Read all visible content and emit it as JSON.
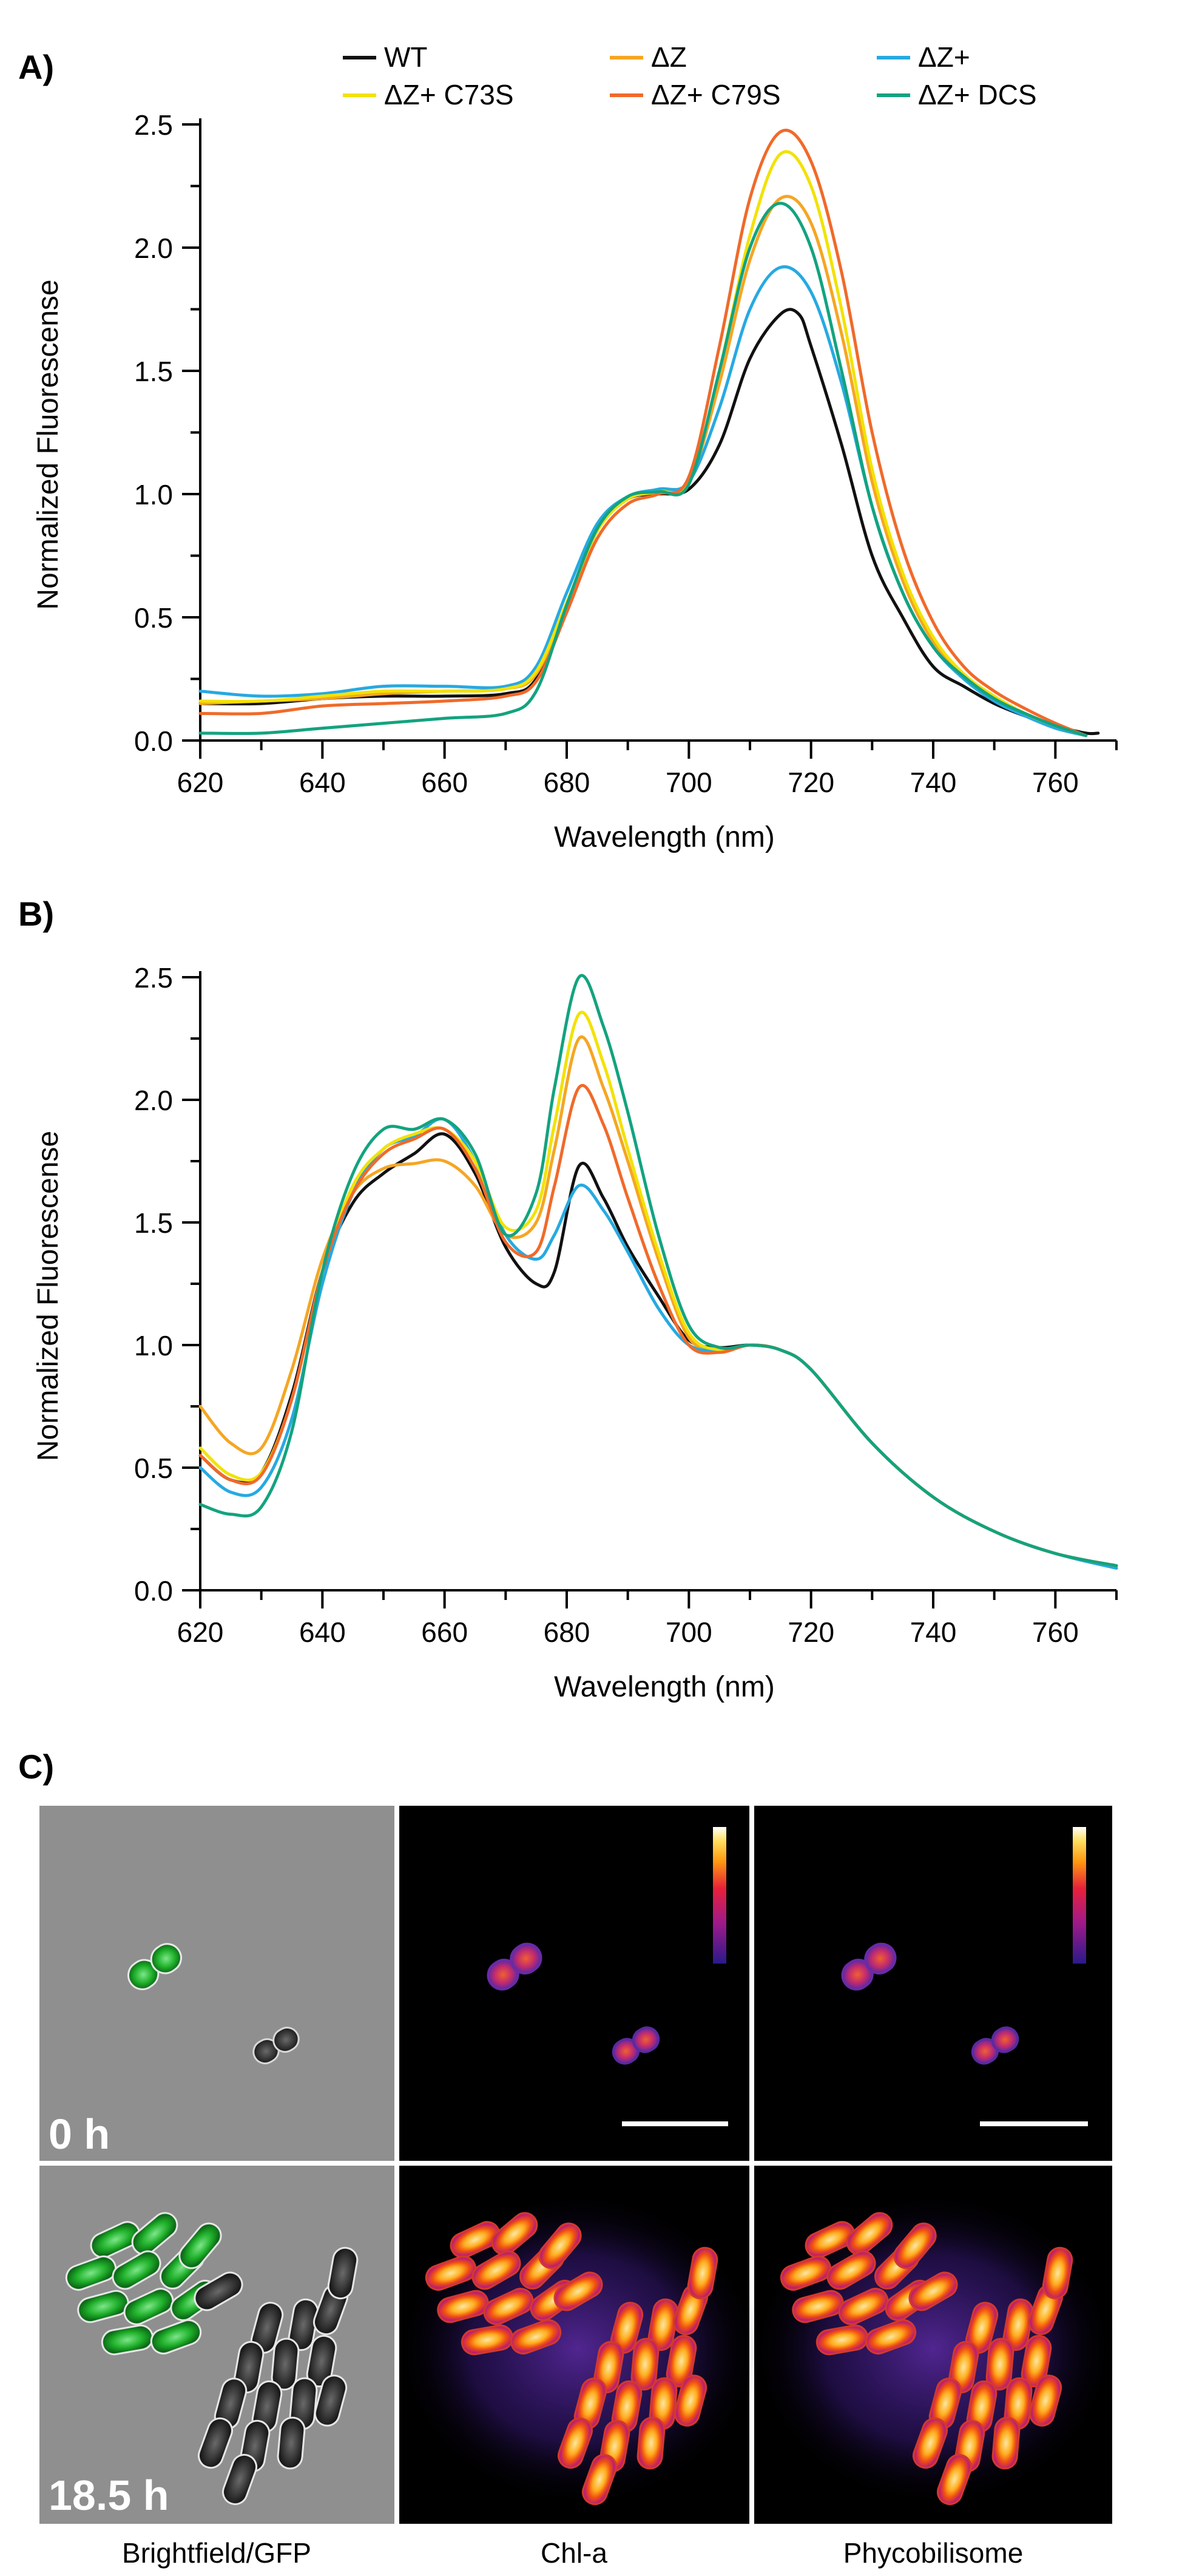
{
  "colors": {
    "WT": "#111111",
    "dZ": "#f5a623",
    "dZplus": "#27a9e1",
    "C73S": "#f2e205",
    "C79S": "#f06a2a",
    "DCS": "#13a37f"
  },
  "chart_data": [
    {
      "panel": "A)",
      "type": "line",
      "xlabel": "Wavelength (nm)",
      "ylabel": "Normalized Fluorescense",
      "xlim": [
        620,
        770
      ],
      "ylim": [
        0,
        2.5
      ],
      "xticks": [
        620,
        640,
        660,
        680,
        700,
        720,
        740,
        760
      ],
      "yticks": [
        0.0,
        0.5,
        1.0,
        1.5,
        2.0,
        2.5
      ],
      "legend": {
        "placement": "top",
        "entries": [
          "WT",
          "ΔZ",
          "ΔZ+",
          "ΔZ+ C73S",
          "ΔZ+ C79S",
          "ΔZ+ DCS"
        ]
      },
      "series": [
        {
          "name": "WT",
          "color_key": "WT",
          "x": [
            620,
            630,
            640,
            650,
            660,
            670,
            675,
            680,
            685,
            690,
            695,
            700,
            705,
            710,
            715,
            718,
            720,
            725,
            730,
            735,
            740,
            745,
            750,
            755,
            760,
            765,
            767
          ],
          "y": [
            0.15,
            0.15,
            0.17,
            0.18,
            0.18,
            0.19,
            0.25,
            0.55,
            0.85,
            0.98,
            1.0,
            1.02,
            1.2,
            1.55,
            1.73,
            1.73,
            1.6,
            1.2,
            0.75,
            0.5,
            0.3,
            0.22,
            0.15,
            0.1,
            0.06,
            0.03,
            0.03
          ]
        },
        {
          "name": "ΔZ",
          "color_key": "dZ",
          "x": [
            620,
            630,
            640,
            650,
            660,
            670,
            675,
            680,
            685,
            690,
            695,
            700,
            705,
            710,
            715,
            720,
            725,
            730,
            735,
            740,
            745,
            750,
            755,
            760,
            765
          ],
          "y": [
            0.15,
            0.16,
            0.17,
            0.19,
            0.2,
            0.21,
            0.27,
            0.55,
            0.85,
            0.98,
            1.01,
            1.05,
            1.45,
            1.95,
            2.2,
            2.1,
            1.65,
            1.05,
            0.65,
            0.4,
            0.26,
            0.17,
            0.11,
            0.06,
            0.02
          ]
        },
        {
          "name": "ΔZ+",
          "color_key": "dZplus",
          "x": [
            620,
            630,
            640,
            650,
            660,
            670,
            675,
            680,
            685,
            690,
            695,
            700,
            705,
            710,
            715,
            720,
            725,
            730,
            735,
            740,
            745,
            750,
            755,
            760,
            765
          ],
          "y": [
            0.2,
            0.18,
            0.19,
            0.22,
            0.22,
            0.22,
            0.3,
            0.6,
            0.88,
            0.99,
            1.02,
            1.05,
            1.35,
            1.75,
            1.92,
            1.82,
            1.45,
            0.95,
            0.6,
            0.38,
            0.25,
            0.16,
            0.1,
            0.05,
            0.02
          ]
        },
        {
          "name": "ΔZ+ C73S",
          "color_key": "C73S",
          "x": [
            620,
            630,
            640,
            650,
            660,
            670,
            675,
            680,
            685,
            690,
            695,
            700,
            705,
            710,
            715,
            720,
            725,
            730,
            735,
            740,
            745,
            750,
            755,
            760,
            765
          ],
          "y": [
            0.16,
            0.16,
            0.18,
            0.2,
            0.2,
            0.21,
            0.28,
            0.56,
            0.85,
            0.98,
            1.01,
            1.05,
            1.5,
            2.05,
            2.38,
            2.25,
            1.75,
            1.1,
            0.68,
            0.42,
            0.27,
            0.18,
            0.11,
            0.06,
            0.02
          ]
        },
        {
          "name": "ΔZ+ C79S",
          "color_key": "C79S",
          "x": [
            620,
            630,
            640,
            650,
            660,
            670,
            675,
            680,
            685,
            690,
            695,
            700,
            705,
            710,
            715,
            720,
            725,
            730,
            735,
            740,
            745,
            750,
            755,
            760,
            765
          ],
          "y": [
            0.11,
            0.11,
            0.14,
            0.15,
            0.16,
            0.18,
            0.24,
            0.52,
            0.82,
            0.96,
            1.0,
            1.07,
            1.6,
            2.2,
            2.47,
            2.35,
            1.9,
            1.25,
            0.78,
            0.48,
            0.3,
            0.2,
            0.13,
            0.07,
            0.02
          ]
        },
        {
          "name": "ΔZ+ DCS",
          "color_key": "DCS",
          "x": [
            620,
            630,
            640,
            650,
            660,
            670,
            675,
            680,
            685,
            690,
            695,
            700,
            705,
            710,
            715,
            720,
            725,
            730,
            735,
            740,
            745,
            750,
            755,
            760,
            765
          ],
          "y": [
            0.03,
            0.03,
            0.05,
            0.07,
            0.09,
            0.11,
            0.2,
            0.55,
            0.86,
            0.99,
            1.01,
            1.04,
            1.5,
            2.0,
            2.18,
            2.0,
            1.5,
            0.95,
            0.6,
            0.38,
            0.26,
            0.17,
            0.11,
            0.06,
            0.02
          ]
        }
      ]
    },
    {
      "panel": "B)",
      "type": "line",
      "xlabel": "Wavelength (nm)",
      "ylabel": "Normalized Fluorescense",
      "xlim": [
        620,
        770
      ],
      "ylim": [
        0,
        2.5
      ],
      "xticks": [
        620,
        640,
        660,
        680,
        700,
        720,
        740,
        760
      ],
      "yticks": [
        0.0,
        0.5,
        1.0,
        1.5,
        2.0,
        2.5
      ],
      "series": [
        {
          "name": "WT",
          "color_key": "WT",
          "x": [
            620,
            625,
            630,
            635,
            640,
            645,
            650,
            655,
            660,
            665,
            670,
            675,
            678,
            682,
            686,
            690,
            695,
            700,
            705,
            710,
            715,
            720,
            730,
            740,
            750,
            760,
            770
          ],
          "y": [
            0.55,
            0.45,
            0.48,
            0.8,
            1.3,
            1.58,
            1.7,
            1.78,
            1.86,
            1.7,
            1.4,
            1.25,
            1.3,
            1.73,
            1.6,
            1.4,
            1.2,
            1.02,
            0.99,
            1.0,
            0.98,
            0.9,
            0.6,
            0.38,
            0.24,
            0.15,
            0.1
          ]
        },
        {
          "name": "ΔZ",
          "color_key": "dZ",
          "x": [
            620,
            625,
            630,
            635,
            640,
            645,
            650,
            655,
            660,
            665,
            670,
            675,
            678,
            682,
            686,
            690,
            695,
            700,
            705,
            710,
            715,
            720,
            730,
            740,
            750,
            760,
            770
          ],
          "y": [
            0.75,
            0.6,
            0.58,
            0.9,
            1.35,
            1.62,
            1.72,
            1.74,
            1.75,
            1.65,
            1.45,
            1.5,
            1.8,
            2.25,
            2.05,
            1.75,
            1.35,
            1.03,
            0.98,
            1.0,
            0.98,
            0.9,
            0.6,
            0.38,
            0.24,
            0.15,
            0.1
          ]
        },
        {
          "name": "ΔZ+",
          "color_key": "dZplus",
          "x": [
            620,
            625,
            630,
            635,
            640,
            645,
            650,
            655,
            660,
            665,
            670,
            675,
            678,
            682,
            686,
            690,
            695,
            700,
            705,
            710,
            715,
            720,
            730,
            740,
            750,
            760,
            770
          ],
          "y": [
            0.5,
            0.4,
            0.42,
            0.7,
            1.25,
            1.62,
            1.8,
            1.85,
            1.92,
            1.75,
            1.45,
            1.35,
            1.45,
            1.65,
            1.55,
            1.38,
            1.15,
            1.0,
            0.98,
            1.0,
            0.98,
            0.9,
            0.6,
            0.38,
            0.24,
            0.15,
            0.09
          ]
        },
        {
          "name": "ΔZ+ C73S",
          "color_key": "C73S",
          "x": [
            620,
            625,
            630,
            635,
            640,
            645,
            650,
            655,
            660,
            665,
            670,
            675,
            678,
            682,
            686,
            690,
            695,
            700,
            705,
            710,
            715,
            720,
            730,
            740,
            750,
            760,
            770
          ],
          "y": [
            0.58,
            0.47,
            0.48,
            0.78,
            1.3,
            1.65,
            1.8,
            1.86,
            1.88,
            1.75,
            1.48,
            1.55,
            1.9,
            2.35,
            2.15,
            1.8,
            1.38,
            1.05,
            0.98,
            1.0,
            0.98,
            0.9,
            0.6,
            0.38,
            0.24,
            0.15,
            0.1
          ]
        },
        {
          "name": "ΔZ+ C79S",
          "color_key": "C79S",
          "x": [
            620,
            625,
            630,
            635,
            640,
            645,
            650,
            655,
            660,
            665,
            670,
            675,
            678,
            682,
            686,
            690,
            695,
            700,
            705,
            710,
            715,
            720,
            730,
            740,
            750,
            760,
            770
          ],
          "y": [
            0.55,
            0.45,
            0.47,
            0.78,
            1.3,
            1.62,
            1.78,
            1.84,
            1.88,
            1.72,
            1.42,
            1.38,
            1.65,
            2.05,
            1.9,
            1.6,
            1.25,
            1.0,
            0.97,
            1.0,
            0.98,
            0.9,
            0.6,
            0.38,
            0.24,
            0.15,
            0.1
          ]
        },
        {
          "name": "ΔZ+ DCS",
          "color_key": "DCS",
          "x": [
            620,
            625,
            630,
            635,
            640,
            645,
            650,
            655,
            660,
            665,
            670,
            675,
            678,
            682,
            686,
            690,
            695,
            700,
            705,
            710,
            715,
            720,
            730,
            740,
            750,
            760,
            770
          ],
          "y": [
            0.35,
            0.31,
            0.34,
            0.65,
            1.3,
            1.7,
            1.88,
            1.88,
            1.92,
            1.78,
            1.45,
            1.62,
            2.05,
            2.5,
            2.3,
            1.95,
            1.45,
            1.08,
            0.99,
            1.0,
            0.98,
            0.9,
            0.6,
            0.38,
            0.24,
            0.15,
            0.1
          ]
        }
      ]
    }
  ],
  "panel_c": {
    "label": "C)",
    "rows": [
      "0 h",
      "18.5 h"
    ],
    "columns": [
      "Brightfield/GFP",
      "Chl-a",
      "Phycobilisome"
    ]
  }
}
